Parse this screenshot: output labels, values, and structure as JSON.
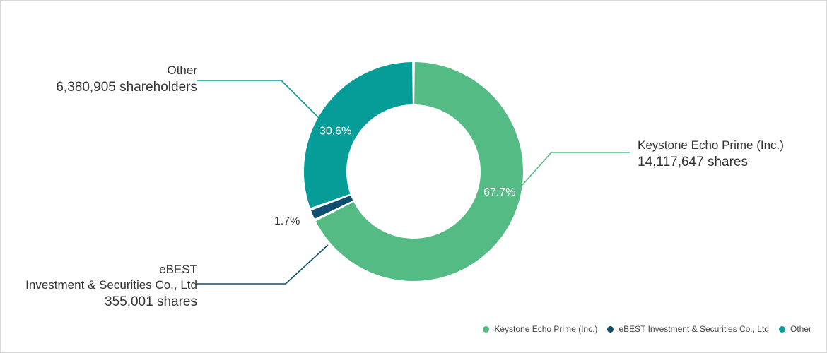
{
  "chart_data": {
    "type": "pie",
    "variant": "donut",
    "title": "",
    "slices": [
      {
        "name": "Keystone Echo Prime (Inc.)",
        "percent": 67.7,
        "percent_label": "67.7%",
        "color": "#55bb84"
      },
      {
        "name": "eBEST Investment & Securities Co., Ltd",
        "percent": 1.7,
        "percent_label": "1.7%",
        "color": "#0f4e6e"
      },
      {
        "name": "Other",
        "percent": 30.6,
        "percent_label": "30.6%",
        "color": "#069c97"
      }
    ],
    "legend_position": "bottom-right"
  },
  "callouts": {
    "other": {
      "name": "Other",
      "value": "6,380,905 shareholders"
    },
    "ebest": {
      "name_line1": "eBEST",
      "name_line2": "Investment & Securities Co., Ltd",
      "value": "355,001 shares"
    },
    "keystone": {
      "name": "Keystone Echo Prime (Inc.)",
      "value": "14,117,647 shares"
    }
  },
  "legend": [
    {
      "label": "Keystone Echo Prime (Inc.)",
      "color": "#55bb84"
    },
    {
      "label": "eBEST Investment & Securities Co., Ltd",
      "color": "#0f4e6e"
    },
    {
      "label": "Other",
      "color": "#069c97"
    }
  ]
}
